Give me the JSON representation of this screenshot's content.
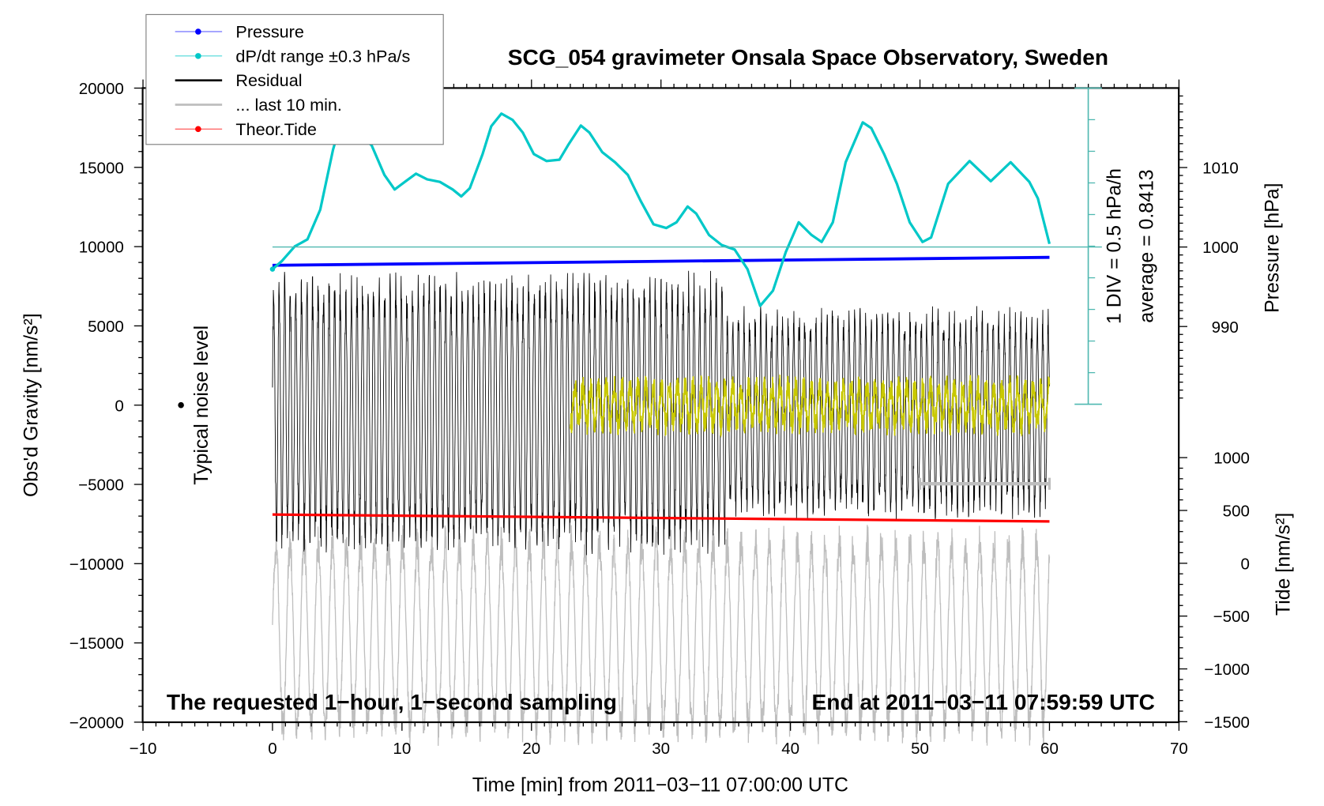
{
  "chart_data": {
    "type": "line",
    "title": "SCG_054 gravimeter Onsala Space Observatory, Sweden",
    "xlabel": "Time [min] from 2011−03−11 07:00:00 UTC",
    "ylabel_left": "Obs'd Gravity [nm/s²]",
    "ylabel_right_pressure": "Pressure [hPa]",
    "ylabel_right_tide": "Tide [nm/s²]",
    "xlim": [
      -10,
      70
    ],
    "ylim_left": [
      -20000,
      20000
    ],
    "x_ticks": [
      "−10",
      "0",
      "10",
      "20",
      "30",
      "40",
      "50",
      "60",
      "70"
    ],
    "y_ticks_left": [
      "20000",
      "15000",
      "10000",
      "5000",
      "0",
      "−5000",
      "−10000",
      "−15000",
      "−20000"
    ],
    "pressure_ticks": [
      "1010",
      "1000",
      "990"
    ],
    "tide_ticks": [
      "1000",
      "500",
      "0",
      "−500",
      "−1000",
      "−1500"
    ],
    "annotation_left": "The requested 1−hour, 1−second sampling",
    "annotation_right": "End at 2011−03−11 07:59:59 UTC",
    "noise_label": "Typical noise level",
    "dpdt_div_label": "1 DIV = 0.5 hPa/h",
    "dpdt_average_label": "average = 0.8413",
    "legend_position": "top-left",
    "legend": [
      {
        "label": "Pressure",
        "color": "#0000ff",
        "marker": true
      },
      {
        "label": "dP/dt range ±0.3 hPa/s",
        "color": "#00c8c8",
        "marker": true
      },
      {
        "label": "Residual",
        "color": "#000000",
        "marker": false
      },
      {
        "label": "... last 10 min.",
        "color": "#bebebe",
        "marker": false
      },
      {
        "label": "Theor.Tide",
        "color": "#ff0000",
        "marker": true
      }
    ],
    "series": {
      "pressure": {
        "x": [
          0,
          60
        ],
        "y": [
          997.7,
          998.7
        ],
        "unit": "hPa",
        "color": "#0000ff"
      },
      "tide": {
        "x": [
          0,
          60
        ],
        "y": [
          461,
          396
        ],
        "unit": "nm/s²",
        "color": "#ff0000"
      },
      "dpdt": {
        "unit": "hPa/h",
        "color": "#00c8c8",
        "x": [
          0,
          0.73,
          1.72,
          2.7,
          3.69,
          4.68,
          5.34,
          7.65,
          8.64,
          9.43,
          10.29,
          11.08,
          11.94,
          12.93,
          13.92,
          14.58,
          15.24,
          16.23,
          16.89,
          17.68,
          18.54,
          19.33,
          20.18,
          21.17,
          22.16,
          22.82,
          23.81,
          24.47,
          25.46,
          26.45,
          27.44,
          28.43,
          29.42,
          30.41,
          31.2,
          32.06,
          32.72,
          33.71,
          34.7,
          35.69,
          36.68,
          37.66,
          38.65,
          39.64,
          40.63,
          41.62,
          42.41,
          43.27,
          44.26,
          45.58,
          46.24,
          47.23,
          48.22,
          49.21,
          50.2,
          50.86,
          52.18,
          53.83,
          55.47,
          57.0,
          58.44,
          59.1,
          60.0
        ],
        "y": [
          -0.35,
          -0.22,
          0.01,
          0.12,
          0.59,
          1.54,
          2.01,
          1.61,
          1.14,
          0.91,
          1.04,
          1.16,
          1.07,
          1.03,
          0.91,
          0.8,
          0.93,
          1.47,
          1.91,
          2.11,
          2.01,
          1.81,
          1.47,
          1.36,
          1.38,
          1.61,
          1.92,
          1.81,
          1.5,
          1.34,
          1.14,
          0.73,
          0.36,
          0.3,
          0.39,
          0.64,
          0.53,
          0.19,
          0.03,
          -0.04,
          -0.35,
          -0.93,
          -0.69,
          -0.08,
          0.39,
          0.19,
          0.08,
          0.39,
          1.34,
          1.97,
          1.88,
          1.47,
          1.0,
          0.39,
          0.08,
          0.15,
          1.0,
          1.36,
          1.04,
          1.34,
          1.03,
          0.77,
          0.05
        ]
      },
      "residual": {
        "x_range": [
          0,
          60
        ],
        "y_range": [
          -9700,
          8800
        ],
        "color": "#000000"
      },
      "last_10_min": {
        "x_range": [
          0,
          60
        ],
        "y_range": [
          -21000,
          -9000
        ],
        "color": "#bebebe"
      },
      "residual_filtered": {
        "x_range": [
          23,
          60
        ],
        "y_range": [
          -3500,
          3500
        ],
        "color": "#c8c800"
      },
      "noise_level": {
        "x": -7,
        "y": 0
      },
      "last_10_min_bar": {
        "x": [
          50,
          60
        ]
      }
    }
  }
}
